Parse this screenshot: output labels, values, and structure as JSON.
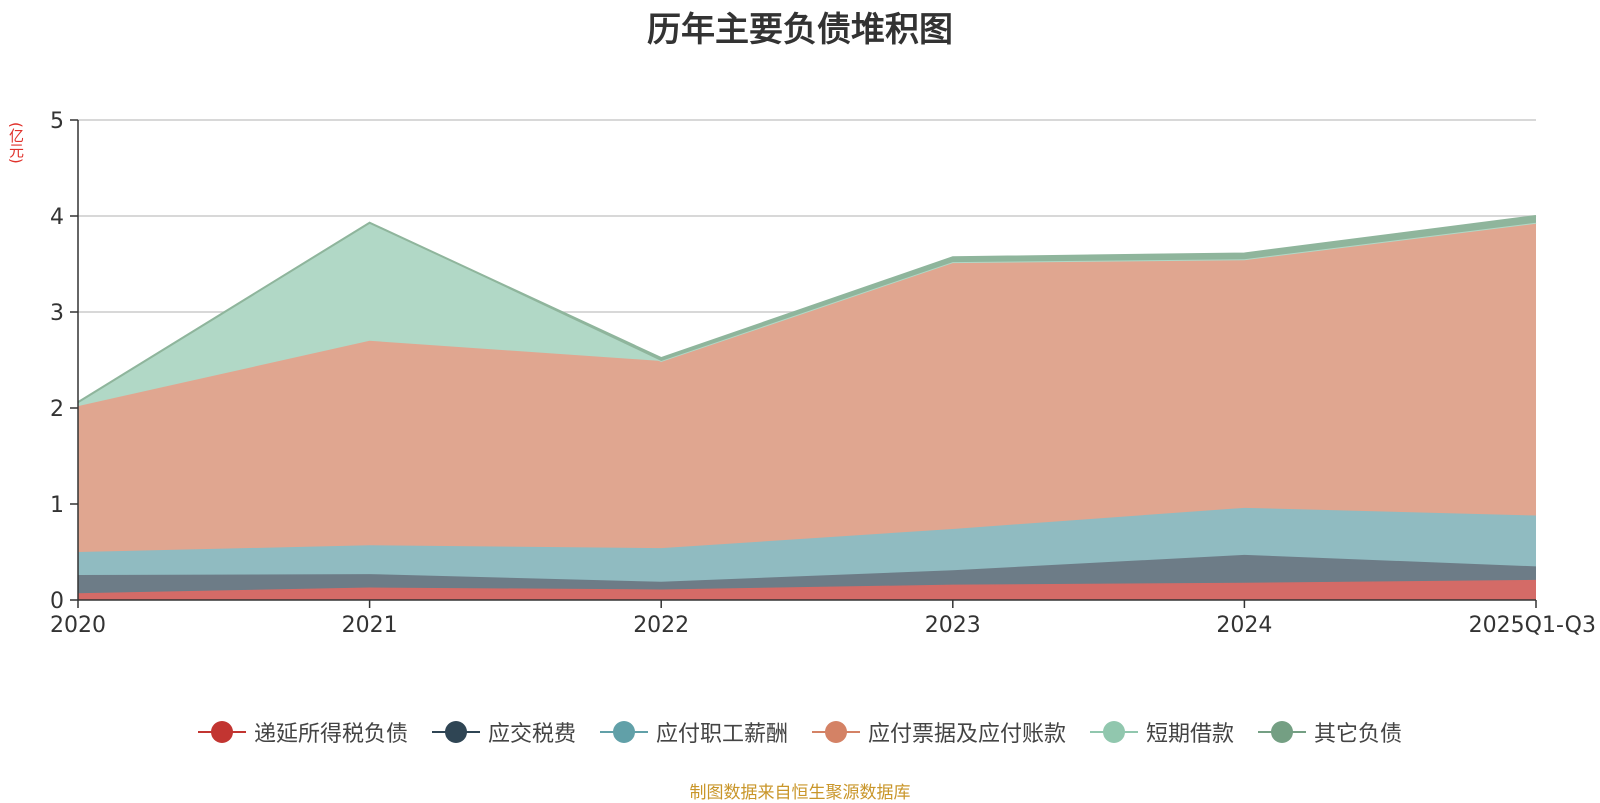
{
  "title": "历年主要负债堆积图",
  "unit_label": "(亿元)",
  "source_text": "制图数据来自恒生聚源数据库",
  "chart_data": {
    "type": "area",
    "stacked": true,
    "title": "历年主要负债堆积图",
    "ylabel": "(亿元)",
    "ylim": [
      0,
      5
    ],
    "yticks": [
      0,
      1,
      2,
      3,
      4,
      5
    ],
    "categories": [
      "2020",
      "2021",
      "2022",
      "2023",
      "2024",
      "2025Q1-Q3"
    ],
    "grid": true,
    "legend_position": "bottom",
    "series": [
      {
        "name": "递延所得税负债",
        "color": "#c23531",
        "fill": "#d46b67",
        "values": [
          0.07,
          0.13,
          0.11,
          0.16,
          0.18,
          0.21
        ]
      },
      {
        "name": "应交税费",
        "color": "#2f4554",
        "fill": "#6d7c87",
        "values": [
          0.19,
          0.14,
          0.08,
          0.15,
          0.29,
          0.14
        ]
      },
      {
        "name": "应付职工薪酬",
        "color": "#61a0a8",
        "fill": "#90bbc1",
        "values": [
          0.24,
          0.3,
          0.35,
          0.43,
          0.49,
          0.53
        ]
      },
      {
        "name": "应付票据及应付账款",
        "color": "#d48265",
        "fill": "#e0a690",
        "values": [
          1.52,
          2.13,
          1.95,
          2.78,
          2.59,
          3.05
        ]
      },
      {
        "name": "短期借款",
        "color": "#91c7ae",
        "fill": "#b1d8c6",
        "values": [
          0.04,
          1.23,
          0.0,
          0.0,
          0.0,
          0.0
        ]
      },
      {
        "name": "其它负债",
        "color": "#749f83",
        "fill": "#8fb59c",
        "values": [
          0.0,
          0.0,
          0.03,
          0.05,
          0.06,
          0.07
        ]
      }
    ]
  }
}
